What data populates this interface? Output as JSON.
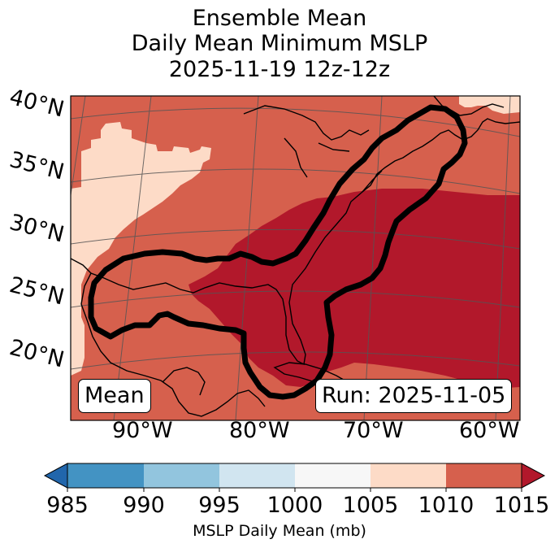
{
  "title": {
    "line1": "Ensemble Mean",
    "line2": "Daily Mean Minimum MSLP",
    "line3": "2025-11-19 12z-12z"
  },
  "map": {
    "lat_labels": [
      "40°N",
      "35°N",
      "30°N",
      "25°N",
      "20°N"
    ],
    "lon_labels": [
      "90°W",
      "80°W",
      "70°W",
      "60°W"
    ],
    "left_box": "Mean",
    "right_box": "Run: 2025-11-05",
    "field_colors": {
      "1005-1010": "#fddbc7",
      "1010-1015": "#d6604d",
      "above-1015": "#b2182b"
    },
    "contour_color": "#000000"
  },
  "colorbar": {
    "label": "MSLP Daily Mean (mb)",
    "ticks": [
      "985",
      "990",
      "995",
      "1000",
      "1005",
      "1010",
      "1015"
    ],
    "under_color": "#2166ac",
    "over_color": "#b2182b",
    "colors": [
      "#4393c3",
      "#92c5de",
      "#d1e5f0",
      "#f7f7f7",
      "#fddbc7",
      "#d6604d"
    ]
  }
}
